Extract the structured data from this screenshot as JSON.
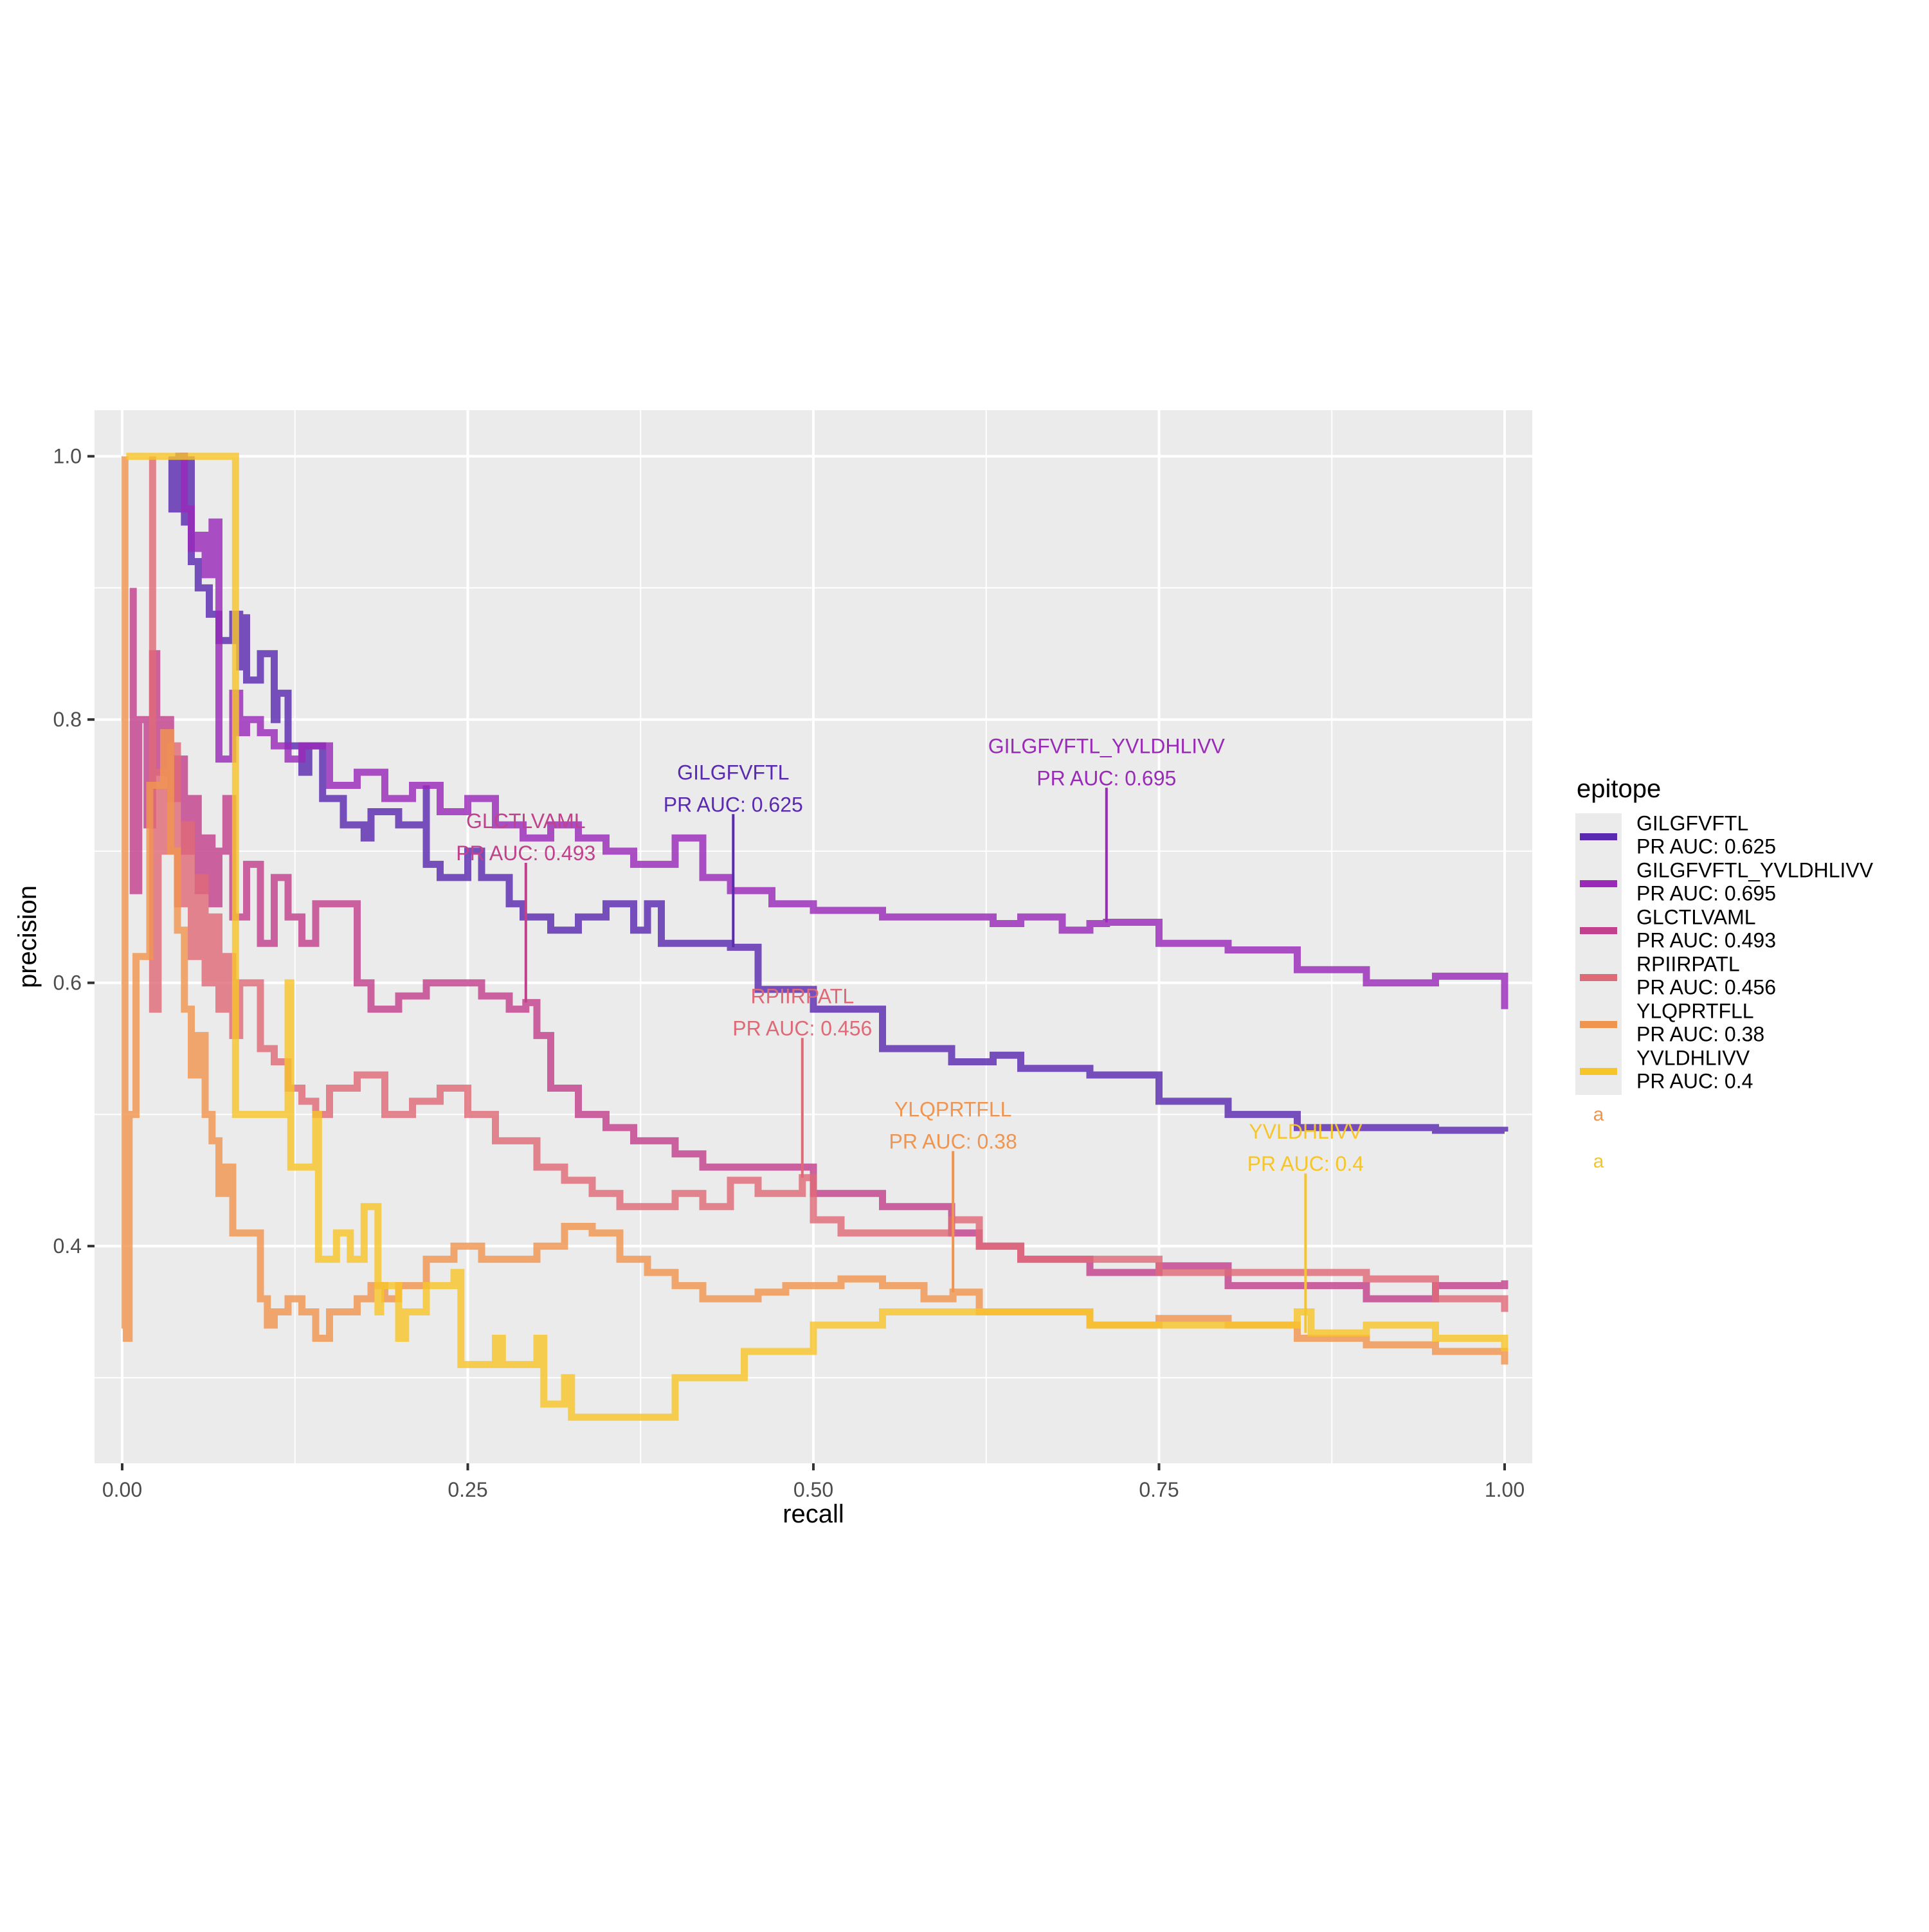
{
  "chart_data": {
    "type": "line",
    "xlabel": "recall",
    "ylabel": "precision",
    "xlim": [
      -0.02,
      1.02
    ],
    "ylim": [
      0.235,
      1.035
    ],
    "xticks": [
      0.0,
      0.25,
      0.5,
      0.75,
      1.0
    ],
    "xtick_labels": [
      "0.00",
      "0.25",
      "0.50",
      "0.75",
      "1.00"
    ],
    "yticks": [
      0.4,
      0.6,
      0.8,
      1.0
    ],
    "ytick_labels": [
      "0.4",
      "0.6",
      "0.8",
      "1.0"
    ],
    "grid": true,
    "legend": {
      "title": "epitope",
      "placement": "right",
      "extra_keys": [
        {
          "glyph": "a",
          "color": "#F0954F"
        },
        {
          "glyph": "a",
          "color": "#F6C52A"
        }
      ]
    },
    "series": [
      {
        "name": "GILGFVFTL",
        "legend_line2": "PR AUC: 0.625",
        "color": "#5A2BB0",
        "annotation": {
          "line1": "GILGFVFTL",
          "line2": "PR AUC: 0.625",
          "x": 0.442,
          "y": 0.627,
          "y_text": 0.735
        },
        "x": [
          0.036,
          0.036,
          0.041,
          0.045,
          0.05,
          0.05,
          0.055,
          0.063,
          0.07,
          0.08,
          0.085,
          0.09,
          0.09,
          0.1,
          0.11,
          0.112,
          0.12,
          0.13,
          0.135,
          0.145,
          0.16,
          0.175,
          0.18,
          0.2,
          0.22,
          0.22,
          0.23,
          0.25,
          0.26,
          0.28,
          0.29,
          0.31,
          0.33,
          0.35,
          0.37,
          0.38,
          0.39,
          0.41,
          0.44,
          0.46,
          0.5,
          0.55,
          0.6,
          0.63,
          0.65,
          0.7,
          0.75,
          0.8,
          0.85,
          0.9,
          0.95,
          1.0
        ],
        "y": [
          1.0,
          0.96,
          1.0,
          0.95,
          1.0,
          0.92,
          0.9,
          0.88,
          0.86,
          0.88,
          0.84,
          0.88,
          0.83,
          0.85,
          0.8,
          0.82,
          0.78,
          0.76,
          0.78,
          0.74,
          0.72,
          0.71,
          0.73,
          0.72,
          0.75,
          0.69,
          0.68,
          0.7,
          0.68,
          0.66,
          0.65,
          0.64,
          0.65,
          0.66,
          0.64,
          0.66,
          0.63,
          0.63,
          0.627,
          0.595,
          0.58,
          0.55,
          0.54,
          0.545,
          0.535,
          0.53,
          0.51,
          0.5,
          0.49,
          0.49,
          0.488,
          0.487
        ]
      },
      {
        "name": "GILGFVFTL_YVLDHLIVV",
        "legend_line2": "PR AUC: 0.695",
        "color": "#9A2AB8",
        "annotation": {
          "line1": "GILGFVFTL_YVLDHLIVV",
          "line2": "PR AUC: 0.695",
          "x": 0.712,
          "y": 0.646,
          "y_text": 0.755
        },
        "x": [
          0.042,
          0.045,
          0.05,
          0.055,
          0.06,
          0.065,
          0.07,
          0.07,
          0.08,
          0.085,
          0.09,
          0.1,
          0.11,
          0.12,
          0.13,
          0.15,
          0.17,
          0.19,
          0.21,
          0.23,
          0.25,
          0.27,
          0.29,
          0.31,
          0.33,
          0.35,
          0.37,
          0.4,
          0.42,
          0.44,
          0.47,
          0.5,
          0.55,
          0.6,
          0.63,
          0.65,
          0.68,
          0.7,
          0.712,
          0.75,
          0.8,
          0.85,
          0.9,
          0.95,
          1.0
        ],
        "y": [
          1.0,
          0.96,
          0.93,
          0.94,
          0.91,
          0.95,
          0.8,
          0.77,
          0.82,
          0.79,
          0.8,
          0.79,
          0.78,
          0.77,
          0.78,
          0.75,
          0.76,
          0.74,
          0.75,
          0.73,
          0.74,
          0.72,
          0.71,
          0.72,
          0.71,
          0.7,
          0.69,
          0.71,
          0.68,
          0.67,
          0.66,
          0.655,
          0.65,
          0.65,
          0.645,
          0.65,
          0.64,
          0.645,
          0.646,
          0.63,
          0.625,
          0.61,
          0.6,
          0.605,
          0.58
        ]
      },
      {
        "name": "GLCTLVAML",
        "legend_line2": "PR AUC: 0.493",
        "color": "#C2418C",
        "annotation": {
          "line1": "GLCTLVAML",
          "line2": "PR AUC: 0.493",
          "x": 0.292,
          "y": 0.585,
          "y_text": 0.698
        },
        "x": [
          0.008,
          0.008,
          0.012,
          0.018,
          0.022,
          0.025,
          0.03,
          0.035,
          0.04,
          0.045,
          0.05,
          0.055,
          0.06,
          0.065,
          0.07,
          0.075,
          0.08,
          0.09,
          0.1,
          0.11,
          0.12,
          0.13,
          0.14,
          0.15,
          0.17,
          0.18,
          0.19,
          0.2,
          0.22,
          0.24,
          0.26,
          0.28,
          0.292,
          0.3,
          0.31,
          0.33,
          0.35,
          0.37,
          0.4,
          0.42,
          0.45,
          0.5,
          0.55,
          0.6,
          0.62,
          0.65,
          0.7,
          0.75,
          0.8,
          0.85,
          0.9,
          0.95,
          1.0
        ],
        "y": [
          0.9,
          0.67,
          0.8,
          0.72,
          0.85,
          0.76,
          0.8,
          0.74,
          0.77,
          0.7,
          0.74,
          0.67,
          0.71,
          0.66,
          0.7,
          0.74,
          0.65,
          0.69,
          0.63,
          0.68,
          0.65,
          0.63,
          0.66,
          0.66,
          0.6,
          0.58,
          0.58,
          0.59,
          0.6,
          0.6,
          0.59,
          0.58,
          0.585,
          0.56,
          0.52,
          0.5,
          0.49,
          0.48,
          0.47,
          0.46,
          0.46,
          0.44,
          0.43,
          0.41,
          0.4,
          0.39,
          0.38,
          0.385,
          0.37,
          0.37,
          0.36,
          0.37,
          0.374
        ]
      },
      {
        "name": "RPIIRPATL",
        "legend_line2": "PR AUC: 0.456",
        "color": "#DE6A77",
        "annotation": {
          "line1": "RPIIRPATL",
          "line2": "PR AUC: 0.456",
          "x": 0.492,
          "y": 0.452,
          "y_text": 0.565
        },
        "x": [
          0.022,
          0.022,
          0.026,
          0.03,
          0.035,
          0.04,
          0.045,
          0.05,
          0.055,
          0.06,
          0.065,
          0.07,
          0.075,
          0.08,
          0.085,
          0.09,
          0.1,
          0.11,
          0.12,
          0.13,
          0.14,
          0.15,
          0.17,
          0.19,
          0.21,
          0.23,
          0.25,
          0.27,
          0.3,
          0.32,
          0.34,
          0.36,
          0.38,
          0.4,
          0.42,
          0.44,
          0.46,
          0.48,
          0.492,
          0.5,
          0.52,
          0.55,
          0.6,
          0.62,
          0.65,
          0.7,
          0.75,
          0.8,
          0.85,
          0.9,
          0.95,
          1.0
        ],
        "y": [
          1.0,
          0.58,
          0.76,
          0.7,
          0.78,
          0.66,
          0.72,
          0.62,
          0.68,
          0.6,
          0.65,
          0.58,
          0.62,
          0.56,
          0.6,
          0.6,
          0.55,
          0.54,
          0.52,
          0.51,
          0.5,
          0.52,
          0.53,
          0.5,
          0.51,
          0.52,
          0.5,
          0.48,
          0.46,
          0.45,
          0.44,
          0.43,
          0.43,
          0.44,
          0.43,
          0.45,
          0.44,
          0.44,
          0.452,
          0.42,
          0.41,
          0.41,
          0.42,
          0.4,
          0.39,
          0.39,
          0.38,
          0.38,
          0.38,
          0.375,
          0.36,
          0.35
        ]
      },
      {
        "name": "YLQPRTFLL",
        "legend_line2": "PR AUC: 0.38",
        "color": "#F0954F",
        "annotation": {
          "line1": "YLQPRTFLL",
          "line2": "PR AUC: 0.38",
          "x": 0.601,
          "y": 0.365,
          "y_text": 0.479
        },
        "x": [
          0.002,
          0.002,
          0.003,
          0.005,
          0.01,
          0.02,
          0.03,
          0.035,
          0.04,
          0.045,
          0.05,
          0.055,
          0.06,
          0.065,
          0.07,
          0.075,
          0.08,
          0.09,
          0.1,
          0.105,
          0.11,
          0.12,
          0.13,
          0.14,
          0.15,
          0.17,
          0.18,
          0.19,
          0.2,
          0.22,
          0.24,
          0.26,
          0.28,
          0.3,
          0.32,
          0.34,
          0.36,
          0.38,
          0.4,
          0.42,
          0.44,
          0.46,
          0.48,
          0.5,
          0.52,
          0.55,
          0.58,
          0.601,
          0.62,
          0.65,
          0.7,
          0.75,
          0.8,
          0.85,
          0.9,
          0.95,
          1.0
        ],
        "y": [
          1.0,
          0.34,
          0.33,
          0.5,
          0.62,
          0.75,
          0.79,
          0.7,
          0.64,
          0.58,
          0.53,
          0.56,
          0.5,
          0.48,
          0.44,
          0.46,
          0.41,
          0.41,
          0.36,
          0.34,
          0.35,
          0.36,
          0.35,
          0.33,
          0.35,
          0.36,
          0.37,
          0.36,
          0.37,
          0.39,
          0.4,
          0.39,
          0.39,
          0.4,
          0.415,
          0.41,
          0.39,
          0.38,
          0.37,
          0.36,
          0.36,
          0.365,
          0.37,
          0.37,
          0.375,
          0.37,
          0.36,
          0.365,
          0.35,
          0.35,
          0.34,
          0.345,
          0.34,
          0.33,
          0.325,
          0.32,
          0.31
        ]
      },
      {
        "name": "YVLDHLIVV",
        "legend_line2": "PR AUC: 0.4",
        "color": "#F6C52A",
        "annotation": {
          "line1": "YVLDHLIVV",
          "line2": "PR AUC: 0.4",
          "x": 0.856,
          "y": 0.334,
          "y_text": 0.462
        },
        "x": [
          0.003,
          0.082,
          0.082,
          0.12,
          0.122,
          0.14,
          0.142,
          0.155,
          0.165,
          0.175,
          0.185,
          0.187,
          0.2,
          0.205,
          0.22,
          0.24,
          0.245,
          0.27,
          0.275,
          0.3,
          0.305,
          0.32,
          0.325,
          0.35,
          0.4,
          0.45,
          0.5,
          0.55,
          0.6,
          0.65,
          0.7,
          0.75,
          0.8,
          0.85,
          0.856,
          0.86,
          0.9,
          0.95,
          1.0
        ],
        "y": [
          1.0,
          1.0,
          0.5,
          0.6,
          0.46,
          0.5,
          0.39,
          0.41,
          0.39,
          0.43,
          0.35,
          0.37,
          0.33,
          0.35,
          0.37,
          0.38,
          0.31,
          0.33,
          0.31,
          0.33,
          0.28,
          0.3,
          0.27,
          0.27,
          0.3,
          0.32,
          0.34,
          0.35,
          0.35,
          0.35,
          0.34,
          0.34,
          0.34,
          0.35,
          0.35,
          0.334,
          0.34,
          0.33,
          0.32
        ]
      }
    ]
  }
}
